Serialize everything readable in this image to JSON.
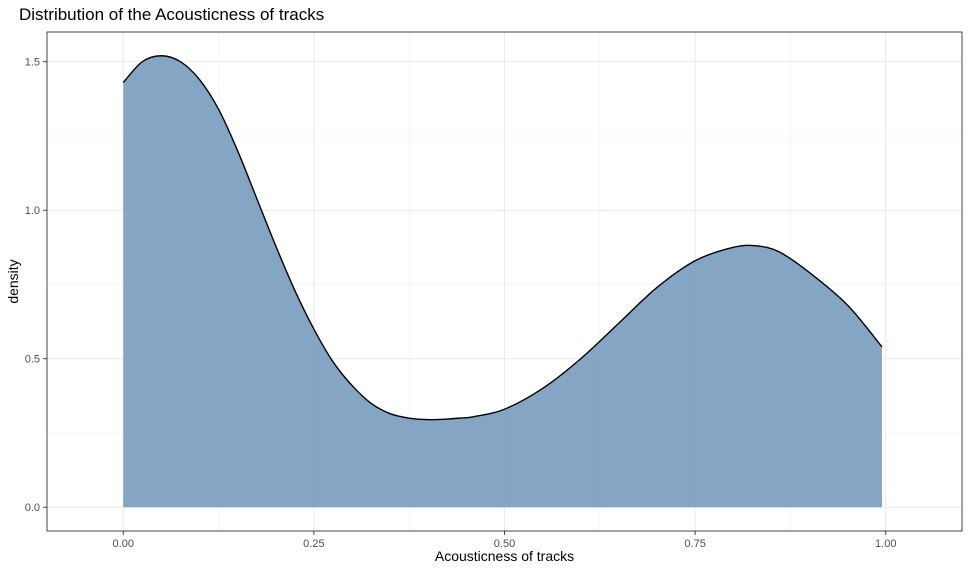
{
  "chart_data": {
    "type": "area",
    "title": "Distribution of the Acousticness of tracks",
    "xlabel": "Acousticness of tracks",
    "ylabel": "density",
    "xlim": [
      -0.1,
      1.1
    ],
    "ylim": [
      -0.08,
      1.6
    ],
    "x_ticks": [
      0.0,
      0.25,
      0.5,
      0.75,
      1.0
    ],
    "x_tick_labels": [
      "0.00",
      "0.25",
      "0.50",
      "0.75",
      "1.00"
    ],
    "y_ticks": [
      0.0,
      0.5,
      1.0,
      1.5
    ],
    "y_tick_labels": [
      "0.0",
      "0.5",
      "1.0",
      "1.5"
    ],
    "grid": true,
    "fill_color": "#7b9dbf",
    "line_color": "#000000",
    "series": [
      {
        "x": [
          0.0,
          0.025,
          0.05,
          0.075,
          0.1,
          0.125,
          0.15,
          0.175,
          0.2,
          0.225,
          0.25,
          0.275,
          0.3,
          0.325,
          0.35,
          0.375,
          0.4,
          0.425,
          0.44,
          0.46,
          0.5,
          0.55,
          0.6,
          0.65,
          0.7,
          0.75,
          0.8,
          0.83,
          0.86,
          0.9,
          0.95,
          0.995
        ],
        "y": [
          1.43,
          1.5,
          1.52,
          1.5,
          1.44,
          1.34,
          1.2,
          1.04,
          0.88,
          0.73,
          0.6,
          0.49,
          0.41,
          0.35,
          0.315,
          0.3,
          0.295,
          0.297,
          0.3,
          0.305,
          0.33,
          0.4,
          0.5,
          0.62,
          0.74,
          0.83,
          0.875,
          0.88,
          0.86,
          0.79,
          0.68,
          0.54
        ]
      }
    ]
  }
}
